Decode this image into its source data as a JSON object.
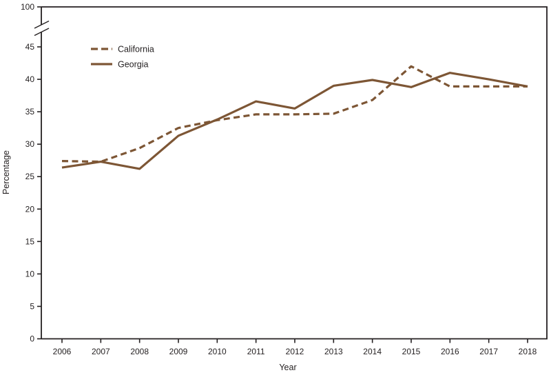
{
  "colors": {
    "line": "#7d5635",
    "axis": "#231f20",
    "text": "#231f20",
    "background": "#ffffff"
  },
  "legend": {
    "entries": [
      {
        "label": "California",
        "style": "dashed"
      },
      {
        "label": "Georgia",
        "style": "solid"
      }
    ],
    "position": "upper-left-inside"
  },
  "chart_data": {
    "type": "line",
    "x": [
      2006,
      2007,
      2008,
      2009,
      2010,
      2011,
      2012,
      2013,
      2014,
      2015,
      2016,
      2017,
      2018
    ],
    "series": [
      {
        "name": "California",
        "style": "dashed",
        "values": [
          27.4,
          27.3,
          29.4,
          32.5,
          33.7,
          34.6,
          34.6,
          34.7,
          36.8,
          42.0,
          38.9,
          38.9,
          38.9
        ]
      },
      {
        "name": "Georgia",
        "style": "solid",
        "values": [
          26.4,
          27.3,
          26.2,
          31.3,
          33.8,
          36.6,
          35.5,
          39.0,
          39.9,
          38.8,
          41.0,
          40.0,
          38.9
        ]
      }
    ],
    "title": "",
    "xlabel": "Year",
    "ylabel": "Percentage",
    "y_ticks": [
      0,
      5,
      10,
      15,
      20,
      25,
      30,
      35,
      40,
      45
    ],
    "y_axis_break": {
      "upper_tick": "100"
    },
    "ylim": [
      0,
      45
    ],
    "grid": false,
    "legend_position": "upper-left-inside"
  }
}
